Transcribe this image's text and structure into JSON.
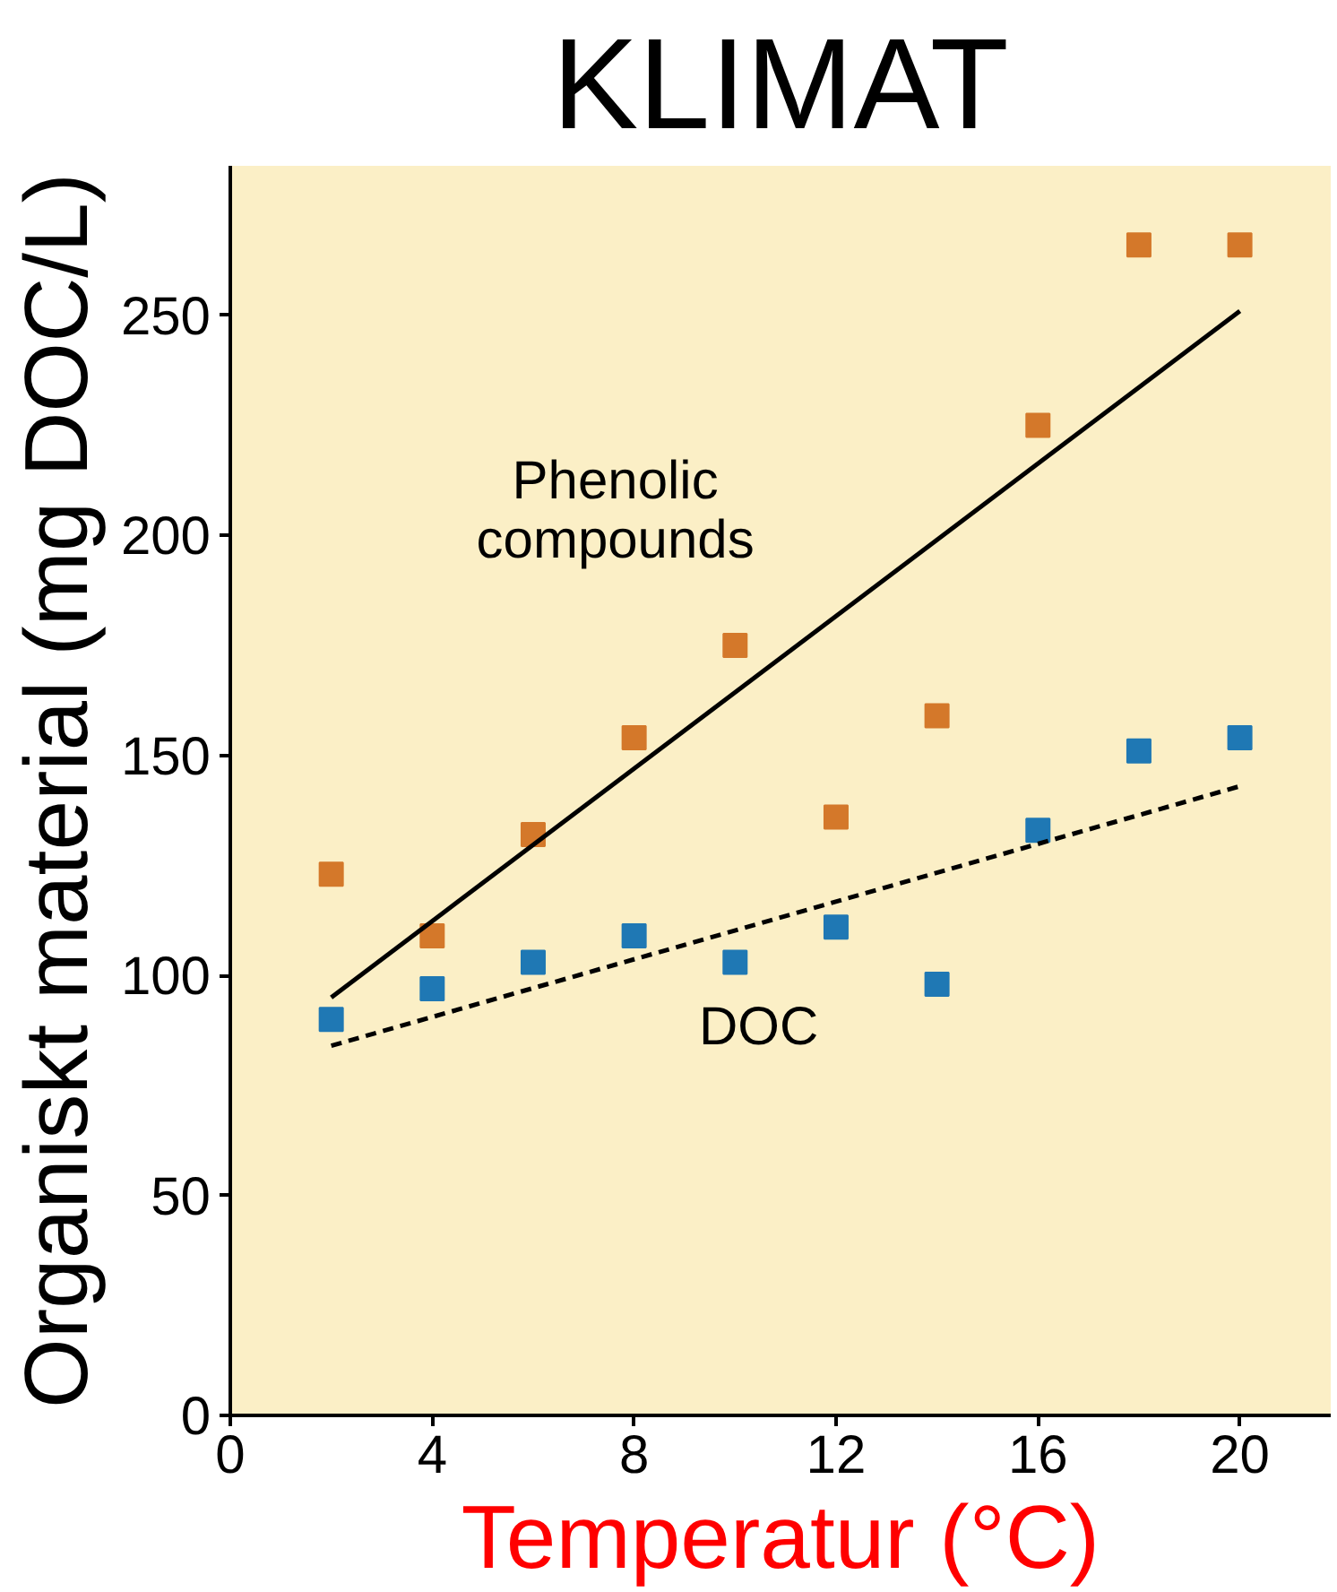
{
  "chart_data": {
    "type": "scatter",
    "title": "KLIMAT",
    "xlabel": "Temperatur (°C)",
    "ylabel": "Organiskt material (mg DOC/L)",
    "xlim": [
      0,
      21.8
    ],
    "ylim": [
      0,
      284
    ],
    "xticks": [
      0,
      4,
      8,
      12,
      16,
      20
    ],
    "yticks": [
      0,
      50,
      100,
      150,
      200,
      250
    ],
    "grid": false,
    "legend": false,
    "marker": "square",
    "series": [
      {
        "color": "#d4782a",
        "x": [
          2,
          4,
          6,
          8,
          10,
          12,
          14,
          16,
          18,
          20
        ],
        "values": [
          123,
          109,
          132,
          154,
          175,
          136,
          159,
          225,
          266,
          266
        ]
      },
      {
        "color": "#1f78b4",
        "x": [
          2,
          4,
          6,
          8,
          10,
          12,
          14,
          16,
          18,
          20
        ],
        "values": [
          90,
          97,
          103,
          109,
          103,
          111,
          98,
          133,
          151,
          154
        ]
      },
      {
        "type": "line",
        "name": "Phenolic\ncompounds",
        "color": "#000000",
        "marker": "none",
        "line_style": "solid",
        "x": [
          2,
          20
        ],
        "values": [
          95,
          251
        ]
      },
      {
        "type": "line",
        "name": "DOC",
        "color": "#000000",
        "marker": "none",
        "line_style": "dashed",
        "x": [
          2,
          20
        ],
        "values": [
          84,
          143
        ]
      }
    ]
  }
}
